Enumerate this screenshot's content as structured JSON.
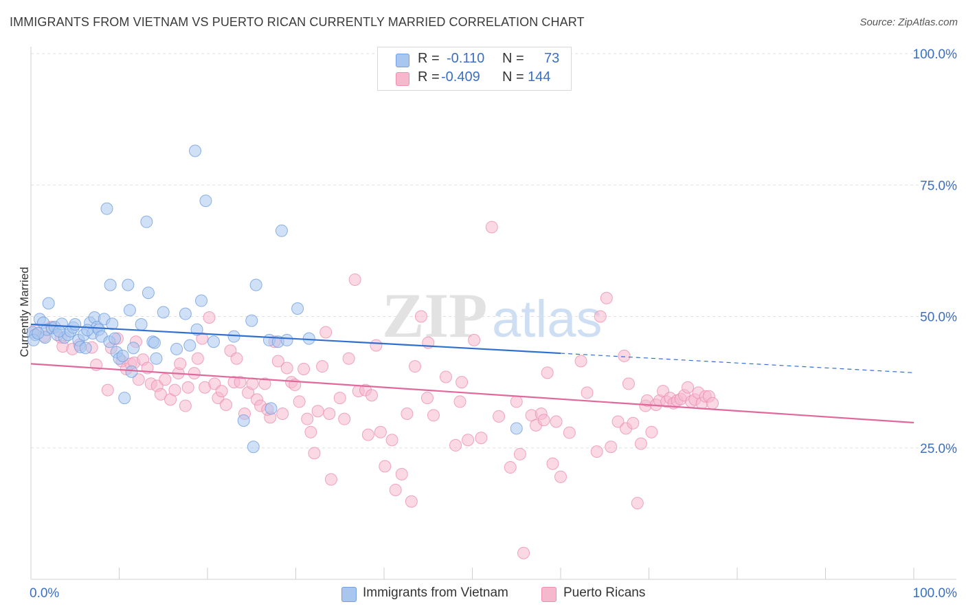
{
  "title": "IMMIGRANTS FROM VIETNAM VS PUERTO RICAN CURRENTLY MARRIED CORRELATION CHART",
  "source": "Source: ZipAtlas.com",
  "watermark": {
    "zip": "ZIP",
    "atlas": "atlas"
  },
  "legend": {
    "rows": [
      {
        "r_label": "R =",
        "r_value": "-0.110",
        "n_label": "N =",
        "n_value": "73",
        "color": "#a9c6ee"
      },
      {
        "r_label": "R =",
        "r_value": "-0.409",
        "n_label": "N =",
        "n_value": "144",
        "color": "#f6b8cd"
      }
    ]
  },
  "bottom_legend": [
    {
      "label": "Immigrants from Vietnam",
      "color": "#a9c6ee"
    },
    {
      "label": "Puerto Ricans",
      "color": "#f6b8cd"
    }
  ],
  "chart_data": {
    "type": "scatter",
    "title": "IMMIGRANTS FROM VIETNAM VS PUERTO RICAN CURRENTLY MARRIED CORRELATION CHART",
    "xlabel": "",
    "ylabel": "Currently Married",
    "xlim": [
      0,
      100
    ],
    "ylim": [
      0,
      100
    ],
    "x_tick_labels": [
      "0.0%",
      "100.0%"
    ],
    "y_ticks": [
      25,
      50,
      75,
      100
    ],
    "y_tick_labels": [
      "25.0%",
      "50.0%",
      "75.0%",
      "100.0%"
    ],
    "grid": true,
    "legend_position": "top-center",
    "series": [
      {
        "name": "Immigrants from Vietnam",
        "color": "#6f9fe0",
        "fill": "#a9c6ee",
        "R": -0.11,
        "N": 73,
        "trend": {
          "x0": 0,
          "y0": 48.5,
          "x1": 60,
          "y1": 43.0,
          "dash_to_x": 100,
          "dash_to_y": 39.3
        },
        "points": [
          [
            0.2,
            47.0
          ],
          [
            0.5,
            46.5
          ],
          [
            1.0,
            49.5
          ],
          [
            1.4,
            48.8
          ],
          [
            1.6,
            46.0
          ],
          [
            1.8,
            47.5
          ],
          [
            2.0,
            52.5
          ],
          [
            2.4,
            47.8
          ],
          [
            2.7,
            48.0
          ],
          [
            3.0,
            46.5
          ],
          [
            3.5,
            48.6
          ],
          [
            3.8,
            46.0
          ],
          [
            4.2,
            46.5
          ],
          [
            4.5,
            47.2
          ],
          [
            4.8,
            47.9
          ],
          [
            5.0,
            48.5
          ],
          [
            5.4,
            45.5
          ],
          [
            5.6,
            44.2
          ],
          [
            6.0,
            46.5
          ],
          [
            6.2,
            44.0
          ],
          [
            6.7,
            48.8
          ],
          [
            7.0,
            46.8
          ],
          [
            7.2,
            49.8
          ],
          [
            7.5,
            48.0
          ],
          [
            7.7,
            47.5
          ],
          [
            8.0,
            46.2
          ],
          [
            8.3,
            49.5
          ],
          [
            8.6,
            70.5
          ],
          [
            8.9,
            45.2
          ],
          [
            9.0,
            56.0
          ],
          [
            9.5,
            45.8
          ],
          [
            9.7,
            43.2
          ],
          [
            10.0,
            42.0
          ],
          [
            10.4,
            42.5
          ],
          [
            10.6,
            34.5
          ],
          [
            11.0,
            56.0
          ],
          [
            11.2,
            51.2
          ],
          [
            11.4,
            39.5
          ],
          [
            11.6,
            44.0
          ],
          [
            12.5,
            48.5
          ],
          [
            13.1,
            68.0
          ],
          [
            13.3,
            54.5
          ],
          [
            13.8,
            45.2
          ],
          [
            14.0,
            45.0
          ],
          [
            14.2,
            42.0
          ],
          [
            15.0,
            50.8
          ],
          [
            16.5,
            43.8
          ],
          [
            17.5,
            50.5
          ],
          [
            18.0,
            44.5
          ],
          [
            18.6,
            81.5
          ],
          [
            18.8,
            47.5
          ],
          [
            19.3,
            53.0
          ],
          [
            19.8,
            72.0
          ],
          [
            20.7,
            45.2
          ],
          [
            23.0,
            46.2
          ],
          [
            24.1,
            30.2
          ],
          [
            25.0,
            49.2
          ],
          [
            25.2,
            25.2
          ],
          [
            25.5,
            56.0
          ],
          [
            27.0,
            45.5
          ],
          [
            27.2,
            32.5
          ],
          [
            28.0,
            45.2
          ],
          [
            28.4,
            66.3
          ],
          [
            29.0,
            45.5
          ],
          [
            30.2,
            51.5
          ],
          [
            31.5,
            45.8
          ],
          [
            55.0,
            28.7
          ],
          [
            0.3,
            45.5
          ],
          [
            0.8,
            46.8
          ],
          [
            3.2,
            47.2
          ],
          [
            6.4,
            47.4
          ],
          [
            9.2,
            48.6
          ]
        ]
      },
      {
        "name": "Puerto Ricans",
        "color": "#ee8fb0",
        "fill": "#f6b8cd",
        "R": -0.409,
        "N": 144,
        "trend": {
          "x0": 0,
          "y0": 41.0,
          "x1": 100,
          "y1": 29.8
        },
        "points": [
          [
            0.5,
            47.5
          ],
          [
            1.5,
            46.2
          ],
          [
            2.3,
            48.0
          ],
          [
            3.4,
            46.0
          ],
          [
            3.6,
            44.3
          ],
          [
            4.7,
            43.8
          ],
          [
            5.5,
            44.6
          ],
          [
            7.4,
            40.8
          ],
          [
            8.7,
            36.0
          ],
          [
            9.1,
            44.0
          ],
          [
            9.8,
            45.8
          ],
          [
            10.3,
            41.5
          ],
          [
            10.8,
            40.0
          ],
          [
            11.3,
            41.0
          ],
          [
            11.7,
            41.2
          ],
          [
            12.2,
            38.0
          ],
          [
            12.7,
            41.8
          ],
          [
            13.2,
            40.2
          ],
          [
            13.6,
            37.2
          ],
          [
            14.3,
            36.8
          ],
          [
            14.7,
            35.2
          ],
          [
            15.2,
            38.0
          ],
          [
            15.8,
            34.2
          ],
          [
            16.3,
            36.0
          ],
          [
            16.7,
            39.2
          ],
          [
            16.9,
            41.0
          ],
          [
            17.5,
            33.0
          ],
          [
            17.8,
            36.5
          ],
          [
            18.5,
            39.2
          ],
          [
            18.9,
            42.0
          ],
          [
            19.4,
            45.8
          ],
          [
            19.7,
            36.5
          ],
          [
            20.2,
            49.8
          ],
          [
            20.8,
            37.2
          ],
          [
            21.2,
            34.5
          ],
          [
            21.6,
            35.8
          ],
          [
            22.1,
            33.2
          ],
          [
            22.6,
            43.5
          ],
          [
            23.0,
            37.5
          ],
          [
            23.3,
            42.0
          ],
          [
            23.7,
            37.5
          ],
          [
            24.2,
            31.5
          ],
          [
            24.6,
            35.5
          ],
          [
            25.1,
            37.2
          ],
          [
            25.6,
            34.2
          ],
          [
            26.0,
            33.0
          ],
          [
            26.5,
            37.2
          ],
          [
            27.1,
            30.8
          ],
          [
            27.6,
            45.2
          ],
          [
            28.0,
            41.5
          ],
          [
            28.5,
            31.5
          ],
          [
            29.0,
            40.2
          ],
          [
            29.5,
            37.5
          ],
          [
            29.9,
            37.0
          ],
          [
            30.4,
            33.8
          ],
          [
            30.9,
            40.0
          ],
          [
            31.3,
            30.5
          ],
          [
            31.7,
            28.0
          ],
          [
            32.1,
            24.0
          ],
          [
            32.5,
            32.0
          ],
          [
            33.0,
            40.5
          ],
          [
            33.4,
            47.0
          ],
          [
            33.8,
            31.5
          ],
          [
            34.0,
            19.0
          ],
          [
            35.0,
            34.5
          ],
          [
            35.5,
            30.5
          ],
          [
            36.0,
            42.0
          ],
          [
            36.7,
            57.0
          ],
          [
            37.1,
            35.8
          ],
          [
            37.9,
            36.0
          ],
          [
            38.2,
            27.5
          ],
          [
            38.6,
            35.0
          ],
          [
            39.1,
            44.5
          ],
          [
            39.6,
            28.0
          ],
          [
            40.1,
            21.5
          ],
          [
            40.9,
            26.5
          ],
          [
            41.3,
            17.0
          ],
          [
            42.0,
            20.0
          ],
          [
            42.6,
            31.5
          ],
          [
            43.1,
            14.8
          ],
          [
            43.5,
            40.5
          ],
          [
            44.2,
            50.0
          ],
          [
            44.9,
            34.5
          ],
          [
            45.6,
            31.2
          ],
          [
            47.0,
            38.5
          ],
          [
            48.1,
            25.5
          ],
          [
            48.6,
            33.8
          ],
          [
            49.5,
            26.5
          ],
          [
            50.2,
            45.5
          ],
          [
            51.0,
            26.9
          ],
          [
            52.2,
            67.0
          ],
          [
            53.0,
            31.0
          ],
          [
            54.3,
            21.3
          ],
          [
            55.0,
            33.8
          ],
          [
            55.4,
            23.8
          ],
          [
            56.7,
            31.2
          ],
          [
            57.2,
            29.3
          ],
          [
            57.8,
            31.5
          ],
          [
            58.1,
            30.3
          ],
          [
            59.1,
            22.0
          ],
          [
            59.5,
            30.0
          ],
          [
            60.0,
            19.5
          ],
          [
            61.0,
            27.9
          ],
          [
            62.3,
            41.5
          ],
          [
            63.0,
            35.5
          ],
          [
            64.1,
            24.3
          ],
          [
            64.5,
            50.0
          ],
          [
            65.2,
            53.5
          ],
          [
            65.7,
            25.2
          ],
          [
            66.5,
            30.0
          ],
          [
            67.2,
            42.5
          ],
          [
            67.4,
            28.7
          ],
          [
            67.7,
            37.2
          ],
          [
            68.2,
            29.7
          ],
          [
            68.7,
            14.5
          ],
          [
            69.1,
            25.8
          ],
          [
            69.6,
            33.0
          ],
          [
            69.8,
            34.0
          ],
          [
            70.3,
            28.0
          ],
          [
            70.8,
            33.2
          ],
          [
            71.2,
            34.0
          ],
          [
            71.6,
            35.8
          ],
          [
            72.0,
            33.8
          ],
          [
            72.4,
            34.5
          ],
          [
            72.8,
            33.5
          ],
          [
            73.2,
            34.0
          ],
          [
            73.6,
            34.3
          ],
          [
            74.0,
            35.0
          ],
          [
            74.4,
            36.5
          ],
          [
            74.8,
            33.8
          ],
          [
            75.2,
            34.2
          ],
          [
            75.6,
            35.5
          ],
          [
            76.0,
            33.5
          ],
          [
            76.4,
            34.8
          ],
          [
            76.8,
            34.8
          ],
          [
            77.2,
            33.5
          ],
          [
            55.8,
            5.0
          ],
          [
            45.0,
            45.0
          ],
          [
            11.9,
            45.2
          ],
          [
            26.8,
            32.3
          ],
          [
            48.8,
            37.5
          ],
          [
            58.5,
            39.3
          ],
          [
            6.9,
            44.1
          ]
        ]
      }
    ]
  }
}
